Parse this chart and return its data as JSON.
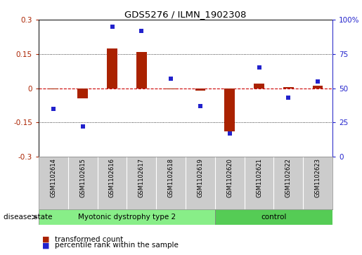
{
  "title": "GDS5276 / ILMN_1902308",
  "samples": [
    "GSM1102614",
    "GSM1102615",
    "GSM1102616",
    "GSM1102617",
    "GSM1102618",
    "GSM1102619",
    "GSM1102620",
    "GSM1102621",
    "GSM1102622",
    "GSM1102623"
  ],
  "transformed_count": [
    -0.005,
    -0.045,
    0.175,
    0.16,
    -0.005,
    -0.01,
    -0.19,
    0.02,
    0.005,
    0.01
  ],
  "percentile_rank": [
    35,
    22,
    95,
    92,
    57,
    37,
    17,
    65,
    43,
    55
  ],
  "disease_groups": [
    {
      "label": "Myotonic dystrophy type 2",
      "start": 0,
      "end": 5
    },
    {
      "label": "control",
      "start": 6,
      "end": 9
    }
  ],
  "ylim_left": [
    -0.3,
    0.3
  ],
  "ylim_right": [
    0,
    100
  ],
  "yticks_left": [
    -0.3,
    -0.15,
    0,
    0.15,
    0.3
  ],
  "yticks_right": [
    0,
    25,
    50,
    75,
    100
  ],
  "bar_color": "#aa2200",
  "dot_color": "#2222cc",
  "zero_line_color": "#cc0000",
  "grid_color": "#000000",
  "bg_color": "#ffffff",
  "plot_bg": "#ffffff",
  "group1_color": "#88ee88",
  "group2_color": "#55cc55",
  "sample_bg": "#cccccc",
  "legend_square_size": 7,
  "bar_width": 0.35
}
